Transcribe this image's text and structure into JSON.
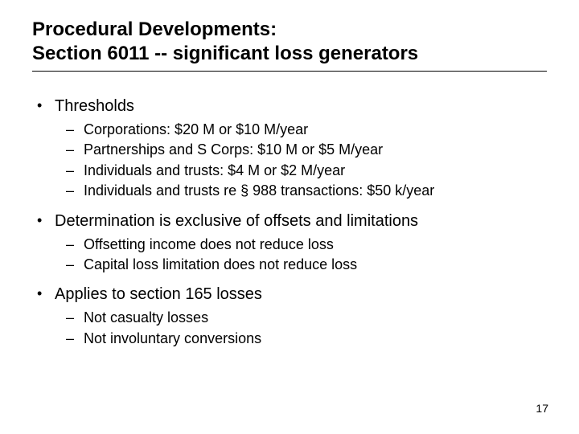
{
  "title_line1": "Procedural Developments:",
  "title_line2": "Section 6011 -- significant loss generators",
  "bullets": [
    {
      "text": "Thresholds",
      "sub": [
        "Corporations:  $20 M or $10 M/year",
        "Partnerships and S Corps:  $10 M or $5 M/year",
        "Individuals and trusts:  $4 M or $2 M/year",
        "Individuals and trusts re § 988 transactions:  $50 k/year"
      ]
    },
    {
      "text": "Determination is exclusive of offsets and limitations",
      "sub": [
        "Offsetting income does not reduce loss",
        "Capital loss limitation does not reduce loss"
      ]
    },
    {
      "text": "Applies to section 165 losses",
      "sub": [
        "Not casualty losses",
        "Not involuntary conversions"
      ]
    }
  ],
  "page_number": "17",
  "colors": {
    "background": "#ffffff",
    "text": "#000000",
    "rule": "#000000"
  },
  "typography": {
    "title_fontsize_pt": 24,
    "level1_fontsize_pt": 20,
    "level2_fontsize_pt": 18,
    "page_number_fontsize_pt": 14,
    "font_family": "Arial",
    "title_weight": "bold"
  }
}
